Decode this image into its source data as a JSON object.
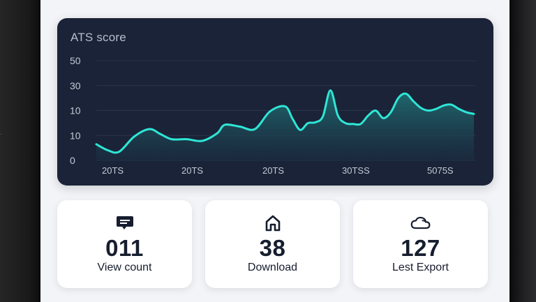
{
  "chart": {
    "title": "ATS score"
  },
  "chart_data": {
    "type": "area",
    "title": "ATS score",
    "y_tick_labels": [
      "50",
      "30",
      "10",
      "10",
      "0"
    ],
    "x_tick_labels": [
      "20TS",
      "20TS",
      "20TS",
      "30TSS",
      "5075S"
    ],
    "ylim": [
      0,
      60
    ],
    "grid": true,
    "series": [
      {
        "x": [
          0,
          3,
          6,
          10,
          14,
          17,
          20,
          24,
          28,
          32,
          34,
          38,
          42,
          46,
          50,
          52,
          54,
          56,
          58,
          60,
          62,
          64,
          66,
          68,
          70,
          72,
          74,
          76,
          78,
          80,
          82,
          84,
          86,
          88,
          90,
          92,
          94,
          96,
          98,
          100
        ],
        "values": [
          10.0,
          6.5,
          5.5,
          14.5,
          19.0,
          16.0,
          13.0,
          13.0,
          12.0,
          16.5,
          21.5,
          20.5,
          19.0,
          29.5,
          32.5,
          25.0,
          18.5,
          22.5,
          23.0,
          26.5,
          42.0,
          27.0,
          22.5,
          22.0,
          22.0,
          27.0,
          30.0,
          25.5,
          29.0,
          37.5,
          40.0,
          35.5,
          31.5,
          30.0,
          31.0,
          33.0,
          33.5,
          31.0,
          29.0,
          28.0
        ]
      }
    ],
    "line_color": "#2ee6d6",
    "fill_color": "#1f6a6e"
  },
  "stats": [
    {
      "icon": "chat-bubble-icon",
      "value": "011",
      "label": "View count"
    },
    {
      "icon": "home-icon",
      "value": "38",
      "label": "Download"
    },
    {
      "icon": "cloud-icon",
      "value": "127",
      "label": "Lest Export"
    }
  ]
}
